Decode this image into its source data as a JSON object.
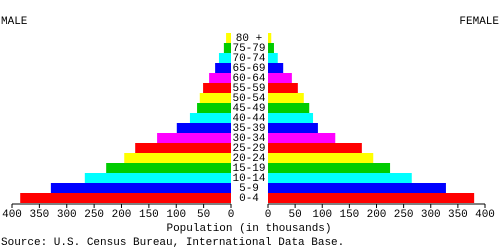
{
  "chart_data": {
    "type": "pyramid",
    "left_label": "MALE",
    "right_label": "FEMALE",
    "xlabel": "Population (in thousands)",
    "source": "Source: U.S. Census Bureau, International Data Base.",
    "categories": [
      "0-4",
      "5-9",
      "10-14",
      "15-19",
      "20-24",
      "25-29",
      "30-34",
      "35-39",
      "40-44",
      "45-49",
      "50-54",
      "55-59",
      "60-64",
      "65-69",
      "70-74",
      "75-79",
      "80 +"
    ],
    "colors": [
      "#ff0000",
      "#0000ff",
      "#00ffff",
      "#00cc00",
      "#ffff00",
      "#ff0000",
      "#ff00ff",
      "#0000ff",
      "#00ffff",
      "#00cc00",
      "#ffff00",
      "#ff0000",
      "#ff00ff",
      "#0000ff",
      "#00ffff",
      "#00cc00",
      "#ffff00"
    ],
    "series": [
      {
        "name": "MALE",
        "values": [
          385,
          329,
          267,
          228,
          195,
          175,
          135,
          99,
          75,
          62,
          57,
          51,
          40,
          29,
          22,
          13,
          9
        ]
      },
      {
        "name": "FEMALE",
        "values": [
          380,
          328,
          265,
          225,
          194,
          173,
          124,
          92,
          83,
          76,
          66,
          55,
          44,
          28,
          18,
          11,
          6
        ]
      }
    ],
    "xlim": [
      0,
      400
    ],
    "xticks": [
      0,
      50,
      100,
      150,
      200,
      250,
      300,
      350,
      400
    ]
  }
}
